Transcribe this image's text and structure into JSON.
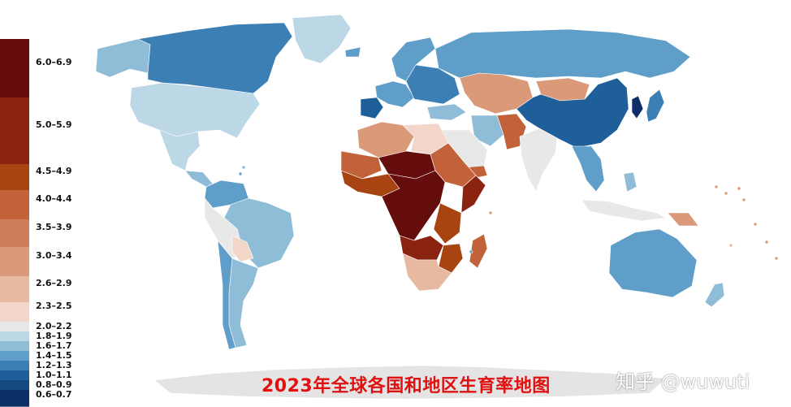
{
  "title": "2023年全球各国和地区生育率地图",
  "watermark": "知乎 @wuwuti",
  "legend": {
    "items": [
      {
        "label": "6.0–6.9",
        "color": "#650d0d"
      },
      {
        "label": "5.0–5.9",
        "color": "#8a2410"
      },
      {
        "label": "4.5–4.9",
        "color": "#a84312"
      },
      {
        "label": "4.0–4.4",
        "color": "#c2623a"
      },
      {
        "label": "3.5–3.9",
        "color": "#cd7e58"
      },
      {
        "label": "3.0–3.4",
        "color": "#da9a7a"
      },
      {
        "label": "2.6–2.9",
        "color": "#e7b9a1"
      },
      {
        "label": "2.3–2.5",
        "color": "#f2d6ca"
      },
      {
        "label": "2.0–2.2",
        "color": "#e8e8e8"
      },
      {
        "label": "1.8–1.9",
        "color": "#bcd7e6"
      },
      {
        "label": "1.6–1.7",
        "color": "#8fbdd8"
      },
      {
        "label": "1.4–1.5",
        "color": "#5f9ec8"
      },
      {
        "label": "1.2–1.3",
        "color": "#3c7fb4"
      },
      {
        "label": "1.0–1.1",
        "color": "#1f5f99"
      },
      {
        "label": "0.8–0.9",
        "color": "#134a82"
      },
      {
        "label": "0.6–0.7",
        "color": "#0b2f66"
      }
    ]
  },
  "regions": [
    {
      "name": "alaska",
      "color": "#8fbdd8"
    },
    {
      "name": "canada",
      "color": "#3c7fb4"
    },
    {
      "name": "greenland",
      "color": "#bcd7e6"
    },
    {
      "name": "united-states",
      "color": "#bcd7e6"
    },
    {
      "name": "mexico",
      "color": "#bcd7e6"
    },
    {
      "name": "central-america",
      "color": "#8fbdd8"
    },
    {
      "name": "colombia-venezuela",
      "color": "#5f9ec8"
    },
    {
      "name": "brazil",
      "color": "#8fbdd8"
    },
    {
      "name": "peru-bolivia",
      "color": "#e8e8e8"
    },
    {
      "name": "paraguay",
      "color": "#f2d6ca"
    },
    {
      "name": "argentina",
      "color": "#8fbdd8"
    },
    {
      "name": "chile",
      "color": "#5f9ec8"
    },
    {
      "name": "iceland-norway-sweden",
      "color": "#5f9ec8"
    },
    {
      "name": "western-europe",
      "color": "#5f9ec8"
    },
    {
      "name": "iberia",
      "color": "#1f5f99"
    },
    {
      "name": "eastern-europe",
      "color": "#3c7fb4"
    },
    {
      "name": "russia",
      "color": "#5f9ec8"
    },
    {
      "name": "kazakhstan-central-asia",
      "color": "#da9a7a"
    },
    {
      "name": "mongolia",
      "color": "#da9a7a"
    },
    {
      "name": "china",
      "color": "#1f5f99"
    },
    {
      "name": "korea",
      "color": "#0b2f66"
    },
    {
      "name": "japan",
      "color": "#3c7fb4"
    },
    {
      "name": "turkey",
      "color": "#8fbdd8"
    },
    {
      "name": "iran",
      "color": "#8fbdd8"
    },
    {
      "name": "afghanistan-pakistan",
      "color": "#c2623a"
    },
    {
      "name": "arabia",
      "color": "#e8e8e8"
    },
    {
      "name": "yemen",
      "color": "#c2623a"
    },
    {
      "name": "india",
      "color": "#e8e8e8"
    },
    {
      "name": "southeast-asia",
      "color": "#5f9ec8"
    },
    {
      "name": "indonesia",
      "color": "#e8e8e8"
    },
    {
      "name": "papua-new-guinea",
      "color": "#da9a7a"
    },
    {
      "name": "philippines",
      "color": "#8fbdd8"
    },
    {
      "name": "australia",
      "color": "#5f9ec8"
    },
    {
      "name": "new-zealand",
      "color": "#8fbdd8"
    },
    {
      "name": "north-africa",
      "color": "#da9a7a"
    },
    {
      "name": "libya-egypt",
      "color": "#f2d6ca"
    },
    {
      "name": "sahel",
      "color": "#c2623a"
    },
    {
      "name": "niger-chad",
      "color": "#650d0d"
    },
    {
      "name": "west-africa",
      "color": "#a84312"
    },
    {
      "name": "horn-of-africa",
      "color": "#c2623a"
    },
    {
      "name": "somalia",
      "color": "#8a2410"
    },
    {
      "name": "central-africa",
      "color": "#650d0d"
    },
    {
      "name": "east-africa",
      "color": "#a84312"
    },
    {
      "name": "angola-zambia",
      "color": "#8a2410"
    },
    {
      "name": "mozambique",
      "color": "#a84312"
    },
    {
      "name": "southern-africa",
      "color": "#e7b9a1"
    },
    {
      "name": "madagascar",
      "color": "#c2623a"
    },
    {
      "name": "antarctica",
      "color": "#e4e4e4"
    }
  ]
}
